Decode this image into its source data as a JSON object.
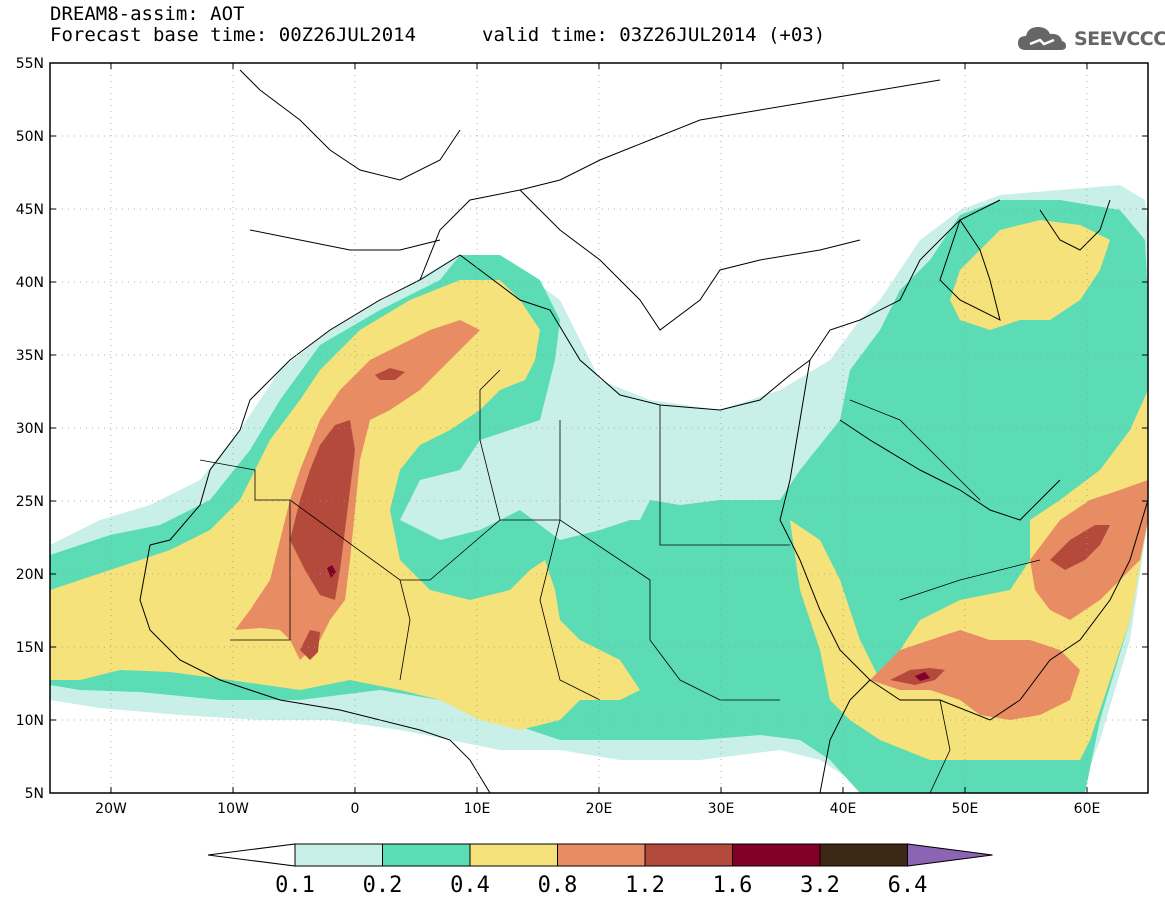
{
  "header": {
    "title_line1": "DREAM8-assim: AOT",
    "title_line2": "Forecast base time: 00Z26JUL2014",
    "valid_time": "valid time: 03Z26JUL2014 (+03)",
    "logo_text": "SEEVCCC"
  },
  "axes": {
    "y_labels": [
      "55N",
      "50N",
      "45N",
      "40N",
      "35N",
      "30N",
      "25N",
      "20N",
      "15N",
      "10N",
      "5N"
    ],
    "y_values": [
      55,
      50,
      45,
      40,
      35,
      30,
      25,
      20,
      15,
      10,
      5
    ],
    "x_labels": [
      "20W",
      "10W",
      "0",
      "10E",
      "20E",
      "30E",
      "40E",
      "50E",
      "60E"
    ],
    "x_values": [
      -20,
      -10,
      0,
      10,
      20,
      30,
      40,
      50,
      60
    ],
    "lon_range": [
      -25,
      65
    ],
    "lat_range": [
      5,
      55
    ]
  },
  "colorbar": {
    "labels": [
      "0.1",
      "0.2",
      "0.4",
      "0.8",
      "1.2",
      "1.6",
      "3.2",
      "6.4"
    ],
    "colors": [
      "#c8f0e8",
      "#5cdcb4",
      "#f6e27a",
      "#e88c64",
      "#b44a3c",
      "#800028",
      "#3c2814",
      "#8c64b4"
    ],
    "under_color": "#ffffff"
  },
  "field_colors": {
    "c1": "#c8f0e8",
    "c2": "#5cdcb4",
    "c3": "#f6e27a",
    "c4": "#e88c64",
    "c5": "#b44a3c",
    "c6": "#800028"
  }
}
